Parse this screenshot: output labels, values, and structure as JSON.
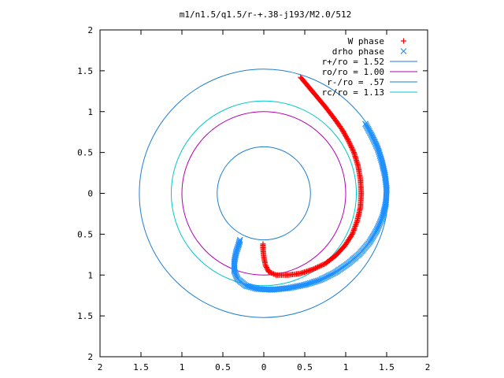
{
  "chart_data": {
    "type": "scatter",
    "title": "m1/n1.5/q1.5/r-+.38-j193/M2.0/512",
    "xlabel": "",
    "ylabel": "",
    "xlim": [
      -2,
      2
    ],
    "ylim": [
      -2,
      2
    ],
    "x_ticks": [
      "2",
      "1.5",
      "1",
      "0.5",
      "0",
      "0.5",
      "1",
      "1.5",
      "2"
    ],
    "y_ticks": [
      "2",
      "1.5",
      "1",
      "0.5",
      "0",
      "0.5",
      "1",
      "1.5",
      "2"
    ],
    "grid": false,
    "legend_position": "top-right",
    "series": [
      {
        "name": "W phase",
        "kind": "points",
        "marker": "+",
        "color": "#ff0000",
        "points": [
          [
            0.45,
            1.42
          ],
          [
            0.55,
            1.3
          ],
          [
            0.65,
            1.18
          ],
          [
            0.75,
            1.06
          ],
          [
            0.85,
            0.93
          ],
          [
            0.95,
            0.79
          ],
          [
            1.03,
            0.65
          ],
          [
            1.1,
            0.5
          ],
          [
            1.15,
            0.34
          ],
          [
            1.18,
            0.17
          ],
          [
            1.19,
            0.0
          ],
          [
            1.18,
            -0.17
          ],
          [
            1.14,
            -0.34
          ],
          [
            1.08,
            -0.5
          ],
          [
            0.99,
            -0.64
          ],
          [
            0.88,
            -0.76
          ],
          [
            0.75,
            -0.86
          ],
          [
            0.6,
            -0.93
          ],
          [
            0.45,
            -0.98
          ],
          [
            0.3,
            -1.0
          ],
          [
            0.15,
            -1.0
          ],
          [
            0.06,
            -0.96
          ],
          [
            0.02,
            -0.88
          ],
          [
            0.0,
            -0.78
          ],
          [
            -0.01,
            -0.68
          ],
          [
            -0.01,
            -0.62
          ]
        ]
      },
      {
        "name": "drho phase",
        "kind": "points",
        "marker": "x",
        "color": "#1e90ff",
        "points": [
          [
            1.24,
            0.85
          ],
          [
            1.32,
            0.7
          ],
          [
            1.39,
            0.55
          ],
          [
            1.44,
            0.39
          ],
          [
            1.48,
            0.22
          ],
          [
            1.5,
            0.05
          ],
          [
            1.49,
            -0.12
          ],
          [
            1.45,
            -0.29
          ],
          [
            1.38,
            -0.45
          ],
          [
            1.29,
            -0.6
          ],
          [
            1.17,
            -0.74
          ],
          [
            1.03,
            -0.86
          ],
          [
            0.87,
            -0.97
          ],
          [
            0.69,
            -1.06
          ],
          [
            0.5,
            -1.12
          ],
          [
            0.3,
            -1.16
          ],
          [
            0.1,
            -1.18
          ],
          [
            -0.08,
            -1.17
          ],
          [
            -0.22,
            -1.13
          ],
          [
            -0.32,
            -1.05
          ],
          [
            -0.36,
            -0.95
          ],
          [
            -0.36,
            -0.84
          ],
          [
            -0.34,
            -0.73
          ],
          [
            -0.31,
            -0.64
          ],
          [
            -0.29,
            -0.57
          ]
        ]
      },
      {
        "name": "r+/ro = 1.52",
        "kind": "circle",
        "radius": 1.52,
        "color": "#1e7fd0"
      },
      {
        "name": "ro/ro = 1.00",
        "kind": "circle",
        "radius": 1.0,
        "color": "#b300b3"
      },
      {
        "name": "r-/ro =  .57",
        "kind": "circle",
        "radius": 0.57,
        "color": "#1e7fd0"
      },
      {
        "name": "rc/ro = 1.13",
        "kind": "circle",
        "radius": 1.13,
        "color": "#00c8c8"
      }
    ]
  }
}
